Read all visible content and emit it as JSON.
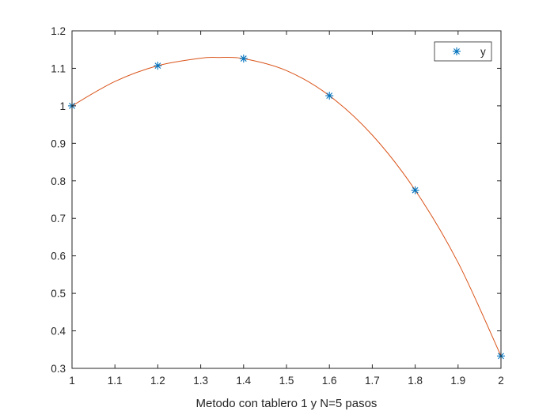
{
  "chart_data": {
    "type": "line",
    "title": "",
    "xlabel": "Metodo con tablero 1 y N=5 pasos",
    "ylabel": "",
    "xlim": [
      1,
      2
    ],
    "ylim": [
      0.3,
      1.2
    ],
    "xticks": [
      1,
      1.1,
      1.2,
      1.3,
      1.4,
      1.5,
      1.6,
      1.7,
      1.8,
      1.9,
      2
    ],
    "xtick_labels": [
      "1",
      "1.1",
      "1.2",
      "1.3",
      "1.4",
      "1.5",
      "1.6",
      "1.7",
      "1.8",
      "1.9",
      "2"
    ],
    "yticks": [
      0.3,
      0.4,
      0.5,
      0.6,
      0.7,
      0.8,
      0.9,
      1,
      1.1,
      1.2
    ],
    "ytick_labels": [
      "0.3",
      "0.4",
      "0.5",
      "0.6",
      "0.7",
      "0.8",
      "0.9",
      "1",
      "1.1",
      "1.2"
    ],
    "grid": false,
    "legend_position": "top-right",
    "series": [
      {
        "name": "y",
        "kind": "marker",
        "marker": "asterisk",
        "color": "#0072BD",
        "x": [
          1,
          1.2,
          1.4,
          1.6,
          1.8,
          2
        ],
        "y": [
          1.0,
          1.107,
          1.126,
          1.027,
          0.775,
          0.333
        ]
      },
      {
        "kind": "line",
        "color": "#D95319",
        "x": [
          1,
          1.1,
          1.2,
          1.3,
          1.34,
          1.4,
          1.5,
          1.6,
          1.7,
          1.8,
          1.9,
          2
        ],
        "y": [
          1.0,
          1.065,
          1.107,
          1.127,
          1.129,
          1.126,
          1.094,
          1.027,
          0.922,
          0.775,
          0.582,
          0.333
        ]
      }
    ]
  }
}
